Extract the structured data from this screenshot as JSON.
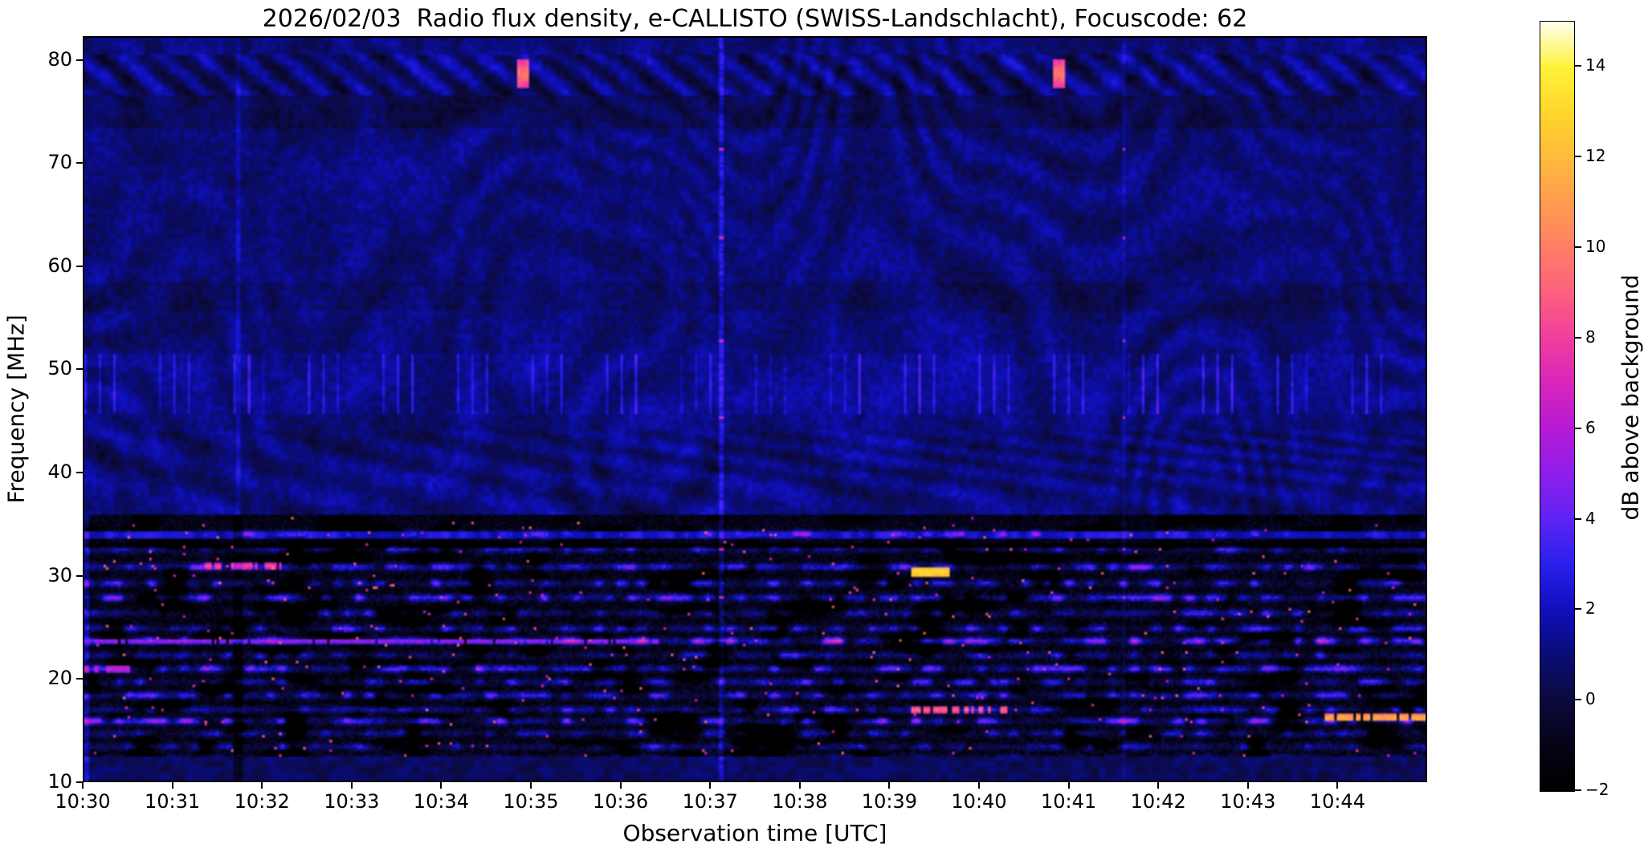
{
  "chart_data": {
    "type": "heatmap",
    "title": "2026/02/03  Radio flux density, e-CALLISTO (SWISS-Landschlacht), Focuscode: 62",
    "xlabel": "Observation time [UTC]",
    "ylabel": "Frequency [MHz]",
    "x_ticks": [
      "10:30",
      "10:31",
      "10:32",
      "10:33",
      "10:34",
      "10:35",
      "10:36",
      "10:37",
      "10:38",
      "10:39",
      "10:40",
      "10:41",
      "10:42",
      "10:43",
      "10:44"
    ],
    "x_range_minutes": [
      0,
      15
    ],
    "y_ticks": [
      80,
      70,
      60,
      50,
      40,
      30,
      20,
      10
    ],
    "ylim": [
      10,
      82.3
    ],
    "grid_on": false,
    "colorbar": {
      "label": "dB above background",
      "ticks": [
        14,
        12,
        10,
        8,
        6,
        4,
        2,
        0,
        -2
      ],
      "vmin": -2,
      "vmax": 15
    },
    "colormap_stops": [
      [
        -2,
        0,
        0,
        0
      ],
      [
        -1,
        5,
        3,
        22
      ],
      [
        0,
        12,
        10,
        62
      ],
      [
        1,
        10,
        12,
        120
      ],
      [
        2,
        16,
        16,
        190
      ],
      [
        3,
        42,
        32,
        238
      ],
      [
        4,
        95,
        36,
        245
      ],
      [
        5,
        142,
        30,
        235
      ],
      [
        6,
        182,
        26,
        214
      ],
      [
        7,
        216,
        38,
        188
      ],
      [
        8,
        240,
        62,
        158
      ],
      [
        9,
        252,
        96,
        128
      ],
      [
        10,
        255,
        126,
        102
      ],
      [
        11,
        255,
        156,
        80
      ],
      [
        12,
        255,
        186,
        60
      ],
      [
        13,
        255,
        214,
        45
      ],
      [
        14,
        255,
        242,
        55
      ],
      [
        15,
        255,
        255,
        235
      ]
    ],
    "grid": {
      "cols": 558,
      "rows": 310
    },
    "regions": {
      "quiet_band_mhz": [
        36,
        82.3
      ],
      "noisy_band_mhz": [
        10,
        36
      ],
      "picket_fence_mhz": [
        45.8,
        51.5
      ],
      "dark_band_1_mhz": [
        73.5,
        76.8
      ],
      "dark_band_2_mhz": [
        55.8,
        58.6
      ],
      "hatch_band_mhz": [
        76.8,
        80.6
      ]
    },
    "noisy_rows_mhz": [
      {
        "f": 34.0,
        "w": 0.85
      },
      {
        "f": 32.5,
        "w": 0.6
      },
      {
        "f": 30.8,
        "w": 0.9
      },
      {
        "f": 29.2,
        "w": 0.7
      },
      {
        "f": 27.8,
        "w": 0.8
      },
      {
        "f": 26.3,
        "w": 0.6
      },
      {
        "f": 24.8,
        "w": 0.7
      },
      {
        "f": 23.6,
        "w": 1.0
      },
      {
        "f": 22.2,
        "w": 0.6
      },
      {
        "f": 20.9,
        "w": 0.9
      },
      {
        "f": 19.6,
        "w": 0.6
      },
      {
        "f": 18.3,
        "w": 0.8
      },
      {
        "f": 16.9,
        "w": 0.7
      },
      {
        "f": 15.8,
        "w": 0.9
      },
      {
        "f": 14.6,
        "w": 0.5
      },
      {
        "f": 13.3,
        "w": 0.6
      },
      {
        "f": 12.2,
        "w": 0.4
      }
    ],
    "features": [
      {
        "kind": "spot",
        "t": 4.9,
        "f": 78.8,
        "dt": 0.06,
        "df": 1.4,
        "db": 10
      },
      {
        "kind": "spot",
        "t": 10.9,
        "f": 78.8,
        "dt": 0.06,
        "df": 1.4,
        "db": 10
      },
      {
        "kind": "blob",
        "t": 9.47,
        "f": 30.3,
        "dt": 0.21,
        "df": 0.55,
        "db": 13.5
      },
      {
        "kind": "streak",
        "t0": 1.35,
        "t1": 2.2,
        "f": 30.9,
        "df": 0.28,
        "db": 8.5,
        "gap": 0.25
      },
      {
        "kind": "streak",
        "t0": 0.0,
        "t1": 6.45,
        "f": 23.6,
        "df": 0.26,
        "db": 5.5,
        "gap": 0.12
      },
      {
        "kind": "streak",
        "t0": 13.85,
        "t1": 15.0,
        "f": 16.1,
        "df": 0.32,
        "db": 12,
        "gap": 0.3
      },
      {
        "kind": "streak",
        "t0": 9.25,
        "t1": 10.35,
        "f": 16.9,
        "df": 0.3,
        "db": 9.5,
        "gap": 0.35
      },
      {
        "kind": "streak",
        "t0": 0.0,
        "t1": 0.5,
        "f": 20.9,
        "df": 0.3,
        "db": 7,
        "gap": 0.2
      },
      {
        "kind": "vline",
        "t": 7.12,
        "db": 2.2
      },
      {
        "kind": "vline",
        "t": 11.62,
        "db": 1.0
      },
      {
        "kind": "vline-dark",
        "t": 1.72,
        "db": -1.8
      }
    ]
  }
}
